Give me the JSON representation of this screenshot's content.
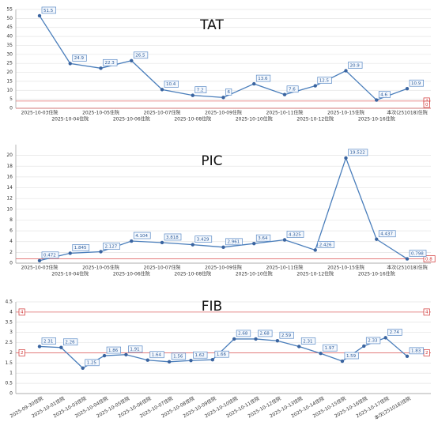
{
  "chart_data": [
    {
      "type": "line",
      "title": "TAT",
      "categories": [
        "2025-10-03住院",
        "2025-10-04住院",
        "2025-10-05住院",
        "2025-10-06住院",
        "2025-10-07住院",
        "2025-10-08住院",
        "2025-10-09住院",
        "2025-10-10住院",
        "2025-10-11住院",
        "2025-10-12住院",
        "2025-10-15住院",
        "2025-10-16住院",
        "本次(251018)住院"
      ],
      "values": [
        51.5,
        24.9,
        22.3,
        26.5,
        10.4,
        7.2,
        6,
        13.6,
        7.6,
        12.5,
        20.9,
        4.6,
        10.9
      ],
      "ylim": [
        0,
        55
      ],
      "yticks": [
        0,
        5,
        10,
        15,
        20,
        25,
        30,
        35,
        40,
        45,
        50,
        55
      ],
      "ref_lines": [
        4,
        0
      ],
      "color": "#4a7ebb",
      "grid": true
    },
    {
      "type": "line",
      "title": "PIC",
      "categories": [
        "2025-10-03住院",
        "2025-10-04住院",
        "2025-10-05住院",
        "2025-10-06住院",
        "2025-10-07住院",
        "2025-10-08住院",
        "2025-10-09住院",
        "2025-10-10住院",
        "2025-10-11住院",
        "2025-10-12住院",
        "2025-10-15住院",
        "2025-10-16住院",
        "本次(251018)住院"
      ],
      "values": [
        0.472,
        1.845,
        2.127,
        4.104,
        3.818,
        3.429,
        2.961,
        3.64,
        4.325,
        2.426,
        19.522,
        4.437,
        0.798
      ],
      "ylim": [
        0,
        22
      ],
      "yticks": [
        0,
        2,
        4,
        6,
        8,
        10,
        12,
        14,
        16,
        18,
        20
      ],
      "ref_lines": [
        0.8
      ],
      "color": "#4a7ebb",
      "grid": true
    },
    {
      "type": "line",
      "title": "FIB",
      "categories": [
        "2025-09-30住院",
        "2025-10-01住院",
        "2025-10-03住院",
        "2025-10-04住院",
        "2025-10-05住院",
        "2025-10-06住院",
        "2025-10-07住院",
        "2025-10-08住院",
        "2025-10-09住院",
        "2025-10-10住院",
        "2025-10-11住院",
        "2025-10-12住院",
        "2025-10-13住院",
        "2025-10-14住院",
        "2025-10-15住院",
        "2025-10-16住院",
        "2025-10-17住院",
        "本次(251018)住院"
      ],
      "values": [
        2.31,
        2.26,
        1.25,
        1.86,
        1.91,
        1.64,
        1.56,
        1.62,
        1.66,
        2.68,
        2.68,
        2.59,
        2.31,
        1.97,
        1.59,
        2.33,
        2.74,
        1.83
      ],
      "ylim": [
        0,
        4.5
      ],
      "yticks": [
        0,
        0.5,
        1,
        1.5,
        2,
        2.5,
        3,
        3.5,
        4,
        4.5
      ],
      "ref_lines": [
        4,
        2
      ],
      "ref_label_left": true,
      "rotate_labels": true,
      "color": "#4a7ebb",
      "grid": true
    }
  ]
}
